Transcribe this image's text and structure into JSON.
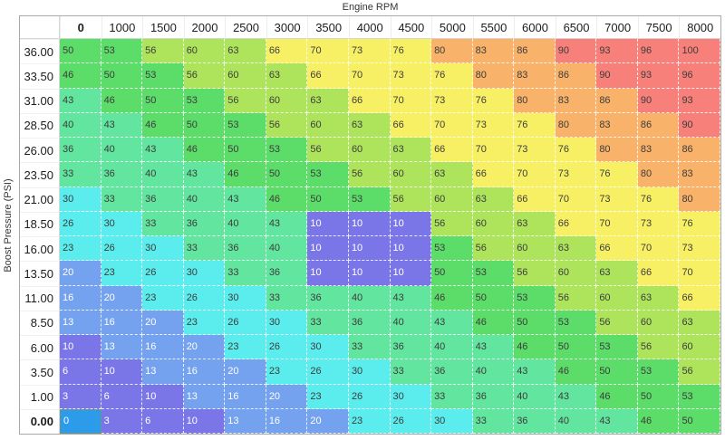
{
  "table": {
    "x_axis_title": "Engine RPM",
    "y_axis_title": "Boost Pressure (PSI)",
    "column_headers": [
      "0",
      "1000",
      "1500",
      "2000",
      "2500",
      "3000",
      "3500",
      "4000",
      "4500",
      "5000",
      "5500",
      "6000",
      "6500",
      "7000",
      "7500",
      "8000"
    ],
    "row_headers": [
      "36.00",
      "33.50",
      "31.00",
      "28.50",
      "26.00",
      "23.50",
      "21.00",
      "18.50",
      "16.00",
      "13.50",
      "11.00",
      "8.50",
      "6.00",
      "3.50",
      "1.00",
      "0.00"
    ],
    "values": [
      [
        50,
        53,
        56,
        60,
        63,
        66,
        70,
        73,
        76,
        80,
        83,
        86,
        90,
        93,
        96,
        100
      ],
      [
        46,
        50,
        53,
        56,
        60,
        63,
        66,
        70,
        73,
        76,
        80,
        83,
        86,
        90,
        93,
        96
      ],
      [
        43,
        46,
        50,
        53,
        56,
        60,
        63,
        66,
        70,
        73,
        76,
        80,
        83,
        86,
        90,
        93
      ],
      [
        40,
        43,
        46,
        50,
        53,
        56,
        60,
        63,
        66,
        70,
        73,
        76,
        80,
        83,
        86,
        90
      ],
      [
        36,
        40,
        43,
        46,
        50,
        53,
        56,
        60,
        63,
        66,
        70,
        73,
        76,
        80,
        83,
        86
      ],
      [
        33,
        36,
        40,
        43,
        46,
        50,
        53,
        56,
        60,
        63,
        66,
        70,
        73,
        76,
        80,
        83
      ],
      [
        30,
        33,
        36,
        40,
        43,
        46,
        50,
        53,
        56,
        60,
        63,
        66,
        70,
        73,
        76,
        80
      ],
      [
        26,
        30,
        33,
        36,
        40,
        43,
        10,
        10,
        10,
        56,
        60,
        63,
        66,
        70,
        73,
        76
      ],
      [
        23,
        26,
        30,
        33,
        36,
        40,
        10,
        10,
        10,
        53,
        56,
        60,
        63,
        66,
        70,
        73
      ],
      [
        20,
        23,
        26,
        30,
        33,
        36,
        10,
        10,
        10,
        50,
        53,
        56,
        60,
        63,
        66,
        70
      ],
      [
        16,
        20,
        23,
        26,
        30,
        33,
        36,
        40,
        43,
        46,
        50,
        53,
        56,
        60,
        63,
        66
      ],
      [
        13,
        16,
        20,
        23,
        26,
        30,
        33,
        36,
        40,
        43,
        46,
        50,
        53,
        56,
        60,
        63
      ],
      [
        10,
        13,
        16,
        20,
        23,
        26,
        30,
        33,
        36,
        40,
        43,
        46,
        50,
        53,
        56,
        60
      ],
      [
        6,
        10,
        13,
        16,
        20,
        23,
        26,
        30,
        33,
        36,
        40,
        43,
        46,
        50,
        53,
        56
      ],
      [
        3,
        6,
        10,
        13,
        16,
        20,
        23,
        26,
        30,
        33,
        36,
        40,
        43,
        46,
        50,
        53
      ],
      [
        0,
        3,
        6,
        10,
        13,
        16,
        20,
        23,
        26,
        30,
        33,
        36,
        40,
        43,
        46,
        50
      ]
    ],
    "selected_cell": {
      "row_index": 15,
      "col_index": 0,
      "value": 0
    },
    "color_scale": [
      {
        "max": 10,
        "bg": "#7B76E8",
        "text": "#FFFFFF"
      },
      {
        "max": 20,
        "bg": "#74A2EE",
        "text": "#FFFFFF"
      },
      {
        "max": 30,
        "bg": "#5BEDED",
        "text": "#3D3D3D"
      },
      {
        "max": 43,
        "bg": "#62E59E",
        "text": "#3D3D3D"
      },
      {
        "max": 53,
        "bg": "#5CDC69",
        "text": "#3D3D3D"
      },
      {
        "max": 63,
        "bg": "#AEE45B",
        "text": "#3D3D3D"
      },
      {
        "max": 76,
        "bg": "#F8F064",
        "text": "#3D3D3D"
      },
      {
        "max": 86,
        "bg": "#F8B269",
        "text": "#3D3D3D"
      },
      {
        "max": 100,
        "bg": "#F8807A",
        "text": "#3D3D3D"
      }
    ],
    "selected_style": {
      "bg": "#2B9BEA",
      "text": "#FFFFFF",
      "border": "#8F8F5A"
    }
  }
}
